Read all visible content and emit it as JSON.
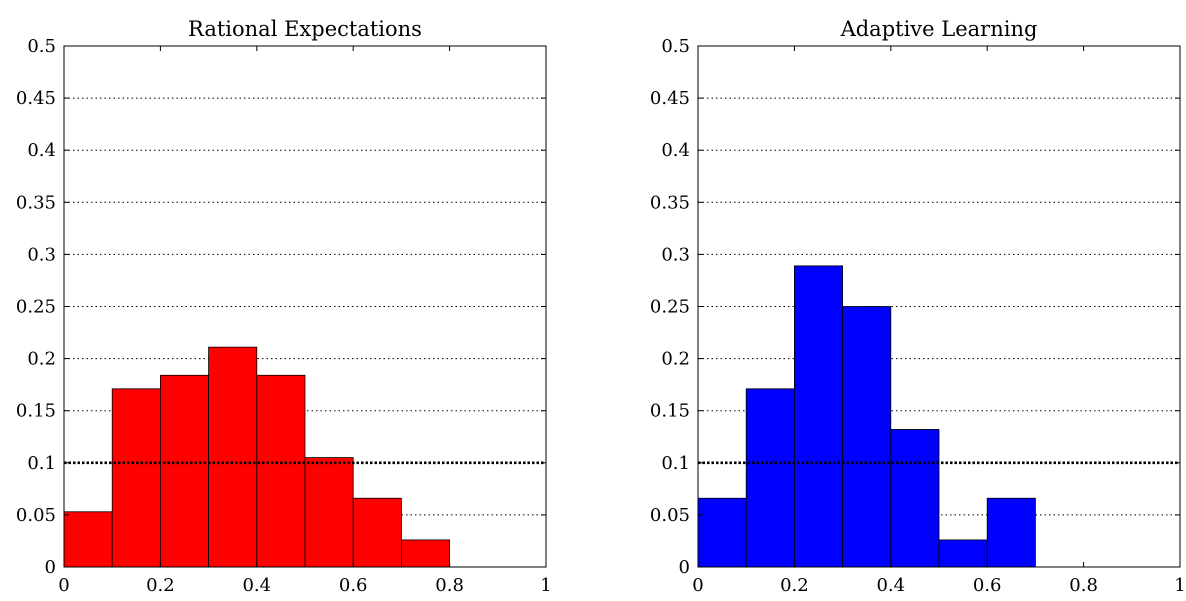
{
  "chart_data": [
    {
      "type": "bar",
      "title": "Rational Expectations",
      "xlabel": "",
      "ylabel": "",
      "xlim": [
        0,
        1
      ],
      "ylim": [
        0,
        0.5
      ],
      "bin_edges": [
        0,
        0.1,
        0.2,
        0.3,
        0.4,
        0.5,
        0.6,
        0.7,
        0.8,
        0.9,
        1.0
      ],
      "values": [
        0.053,
        0.171,
        0.184,
        0.211,
        0.184,
        0.105,
        0.066,
        0.026,
        0,
        0
      ],
      "x_ticks": [
        "0",
        "0.2",
        "0.4",
        "0.6",
        "0.8",
        "1"
      ],
      "y_ticks": [
        "0",
        "0.05",
        "0.1",
        "0.15",
        "0.2",
        "0.25",
        "0.3",
        "0.35",
        "0.4",
        "0.45",
        "0.5"
      ],
      "bar_color": "#ff0000",
      "reference_line_y": 0.1,
      "grid": "horizontal-dotted"
    },
    {
      "type": "bar",
      "title": "Adaptive Learning",
      "xlabel": "",
      "ylabel": "",
      "xlim": [
        0,
        1
      ],
      "ylim": [
        0,
        0.5
      ],
      "bin_edges": [
        0,
        0.1,
        0.2,
        0.3,
        0.4,
        0.5,
        0.6,
        0.7,
        0.8,
        0.9,
        1.0
      ],
      "values": [
        0.066,
        0.171,
        0.289,
        0.25,
        0.132,
        0.026,
        0.066,
        0,
        0,
        0
      ],
      "x_ticks": [
        "0",
        "0.2",
        "0.4",
        "0.6",
        "0.8",
        "1"
      ],
      "y_ticks": [
        "0",
        "0.05",
        "0.1",
        "0.15",
        "0.2",
        "0.25",
        "0.3",
        "0.35",
        "0.4",
        "0.45",
        "0.5"
      ],
      "bar_color": "#0000ff",
      "reference_line_y": 0.1,
      "grid": "horizontal-dotted"
    }
  ]
}
